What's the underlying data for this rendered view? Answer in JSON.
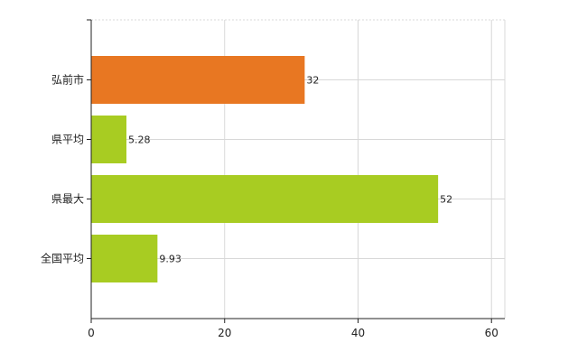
{
  "chart_data": {
    "type": "bar",
    "orientation": "horizontal",
    "categories": [
      "弘前市",
      "県平均",
      "県最大",
      "全国平均"
    ],
    "values": [
      32,
      5.28,
      52,
      9.93
    ],
    "value_labels": [
      "32",
      "5.28",
      "52",
      "9.93"
    ],
    "bar_colors": [
      "#e87722",
      "#a8cc22",
      "#a8cc22",
      "#a8cc22"
    ],
    "xlim": [
      0,
      62
    ],
    "xticks": [
      0,
      20,
      40,
      60
    ],
    "xtick_labels": [
      "0",
      "20",
      "40",
      "60"
    ],
    "grid": true
  }
}
